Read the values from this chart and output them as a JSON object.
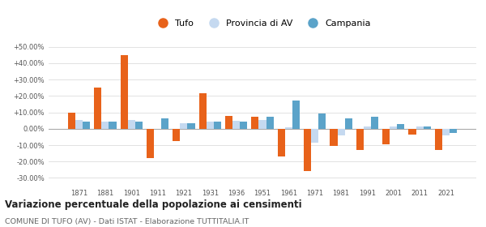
{
  "years": [
    1871,
    1881,
    1901,
    1911,
    1921,
    1931,
    1936,
    1951,
    1961,
    1971,
    1981,
    1991,
    2001,
    2011,
    2021
  ],
  "tufo": [
    10.0,
    25.0,
    45.0,
    -18.0,
    -7.5,
    21.5,
    8.0,
    7.5,
    -17.0,
    -26.0,
    -10.5,
    -13.0,
    -9.5,
    -3.5,
    -13.0
  ],
  "provincia": [
    5.5,
    4.5,
    5.5,
    0.0,
    3.5,
    4.5,
    5.0,
    5.5,
    1.0,
    -8.5,
    -4.0,
    1.5,
    1.5,
    1.5,
    -4.0
  ],
  "campania": [
    4.5,
    4.5,
    4.5,
    6.5,
    3.5,
    4.5,
    4.5,
    7.5,
    17.0,
    9.5,
    6.5,
    7.5,
    3.0,
    1.5,
    -2.5
  ],
  "tufo_color": "#e8621a",
  "provincia_color": "#c5d9f0",
  "campania_color": "#5ba3c9",
  "ylim": [
    -35,
    55
  ],
  "yticks": [
    -30,
    -20,
    -10,
    0,
    10,
    20,
    30,
    40,
    50
  ],
  "ytick_labels": [
    "-30.00%",
    "-20.00%",
    "-10.00%",
    "0.00%",
    "+10.00%",
    "+20.00%",
    "+30.00%",
    "+40.00%",
    "+50.00%"
  ],
  "title1": "Variazione percentuale della popolazione ai censimenti",
  "title2": "COMUNE DI TUFO (AV) - Dati ISTAT - Elaborazione TUTTITALIA.IT",
  "legend_labels": [
    "Tufo",
    "Provincia di AV",
    "Campania"
  ],
  "bar_width": 0.28,
  "background_color": "#ffffff",
  "grid_color": "#dddddd"
}
